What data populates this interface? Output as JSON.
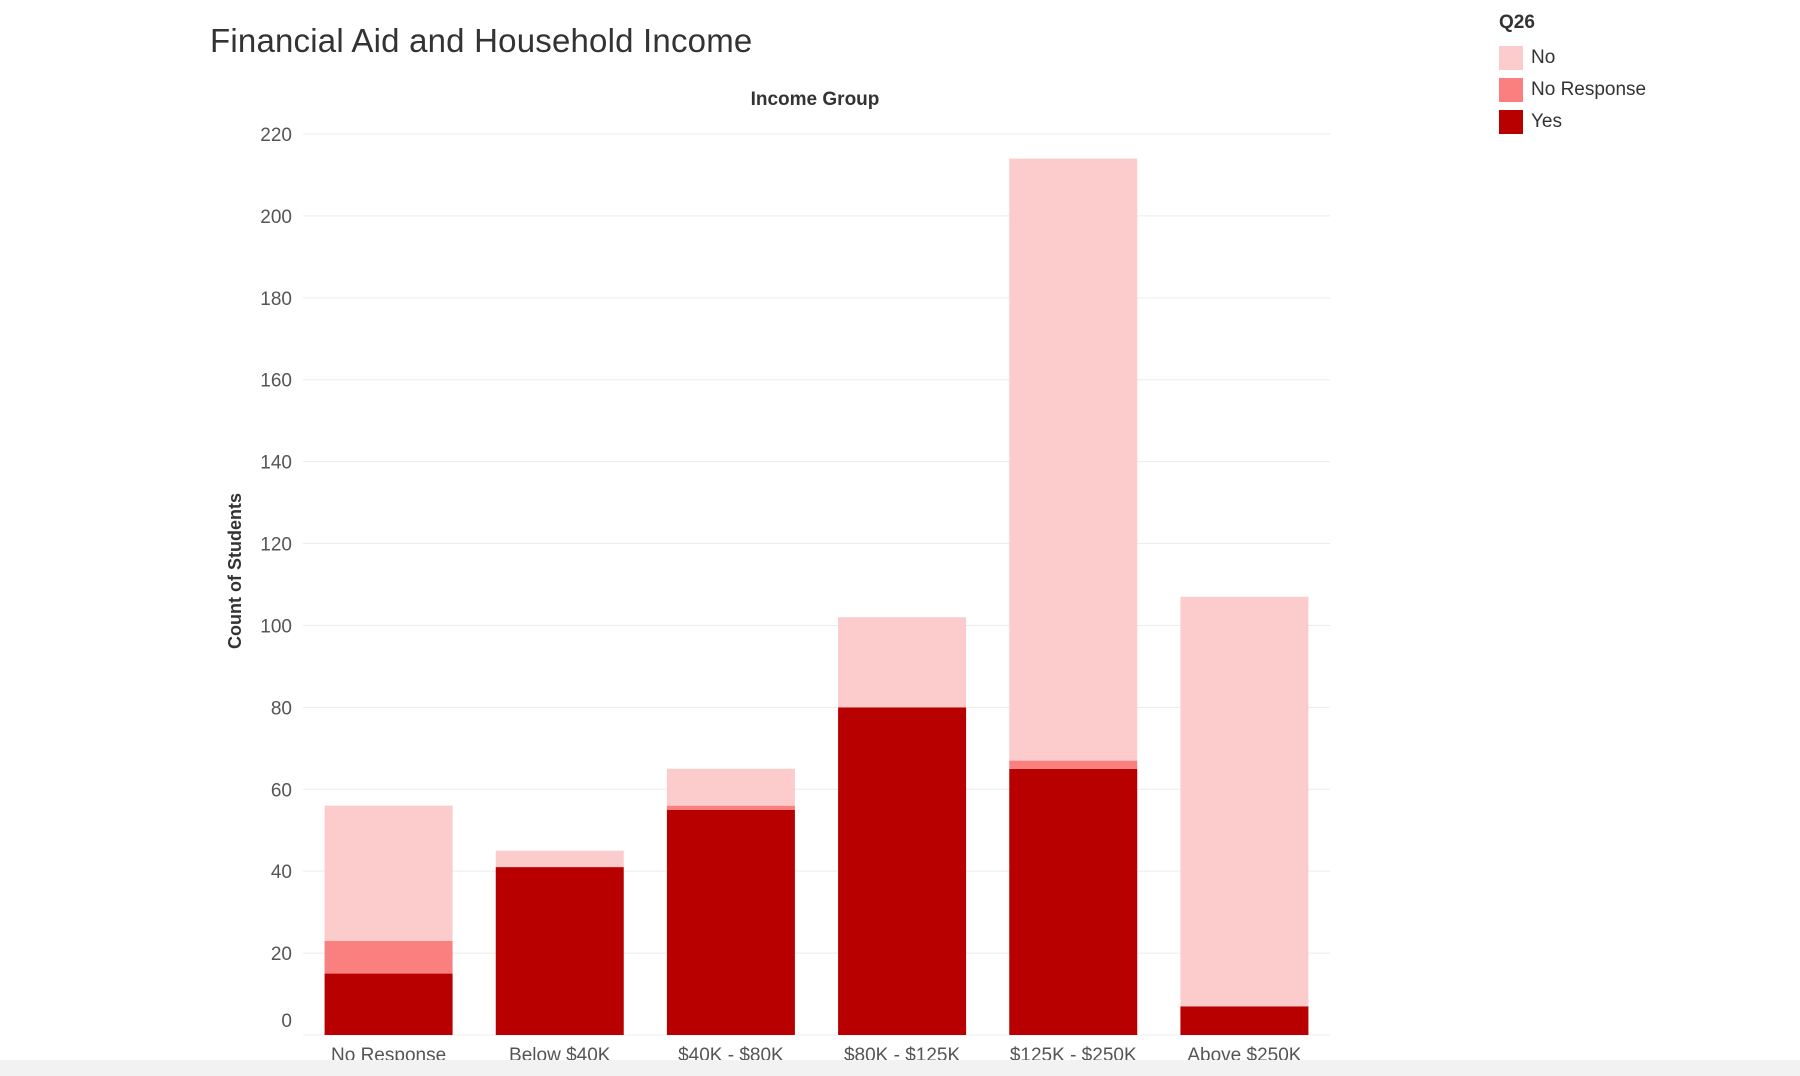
{
  "chart_data": {
    "type": "bar",
    "stacked": true,
    "title": "Financial Aid and Household Income",
    "header": "Income Group",
    "ylabel": "Count of Students",
    "ylim": [
      0,
      220
    ],
    "yticks": [
      0,
      20,
      40,
      60,
      80,
      100,
      120,
      140,
      160,
      180,
      200,
      220
    ],
    "grid": true,
    "legend_position": "top-right",
    "legend_title": "Q26",
    "categories": [
      "No Response",
      "Below $40K",
      "$40K - $80K",
      "$80K - $125K",
      "$125K - $250K",
      "Above $250K"
    ],
    "series": [
      {
        "name": "Yes",
        "color": "#b90000",
        "values": [
          15,
          41,
          55,
          80,
          65,
          7
        ]
      },
      {
        "name": "No Response",
        "color": "#fa7f7f",
        "values": [
          8,
          0,
          1,
          0,
          2,
          0
        ]
      },
      {
        "name": "No",
        "color": "#fccbcb",
        "values": [
          33,
          4,
          9,
          22,
          147,
          100
        ]
      }
    ]
  },
  "legend": {
    "title": "Q26",
    "items": [
      {
        "label": "No",
        "color": "#fccbcb"
      },
      {
        "label": "No Response",
        "color": "#fa7f7f"
      },
      {
        "label": "Yes",
        "color": "#b90000"
      }
    ]
  }
}
